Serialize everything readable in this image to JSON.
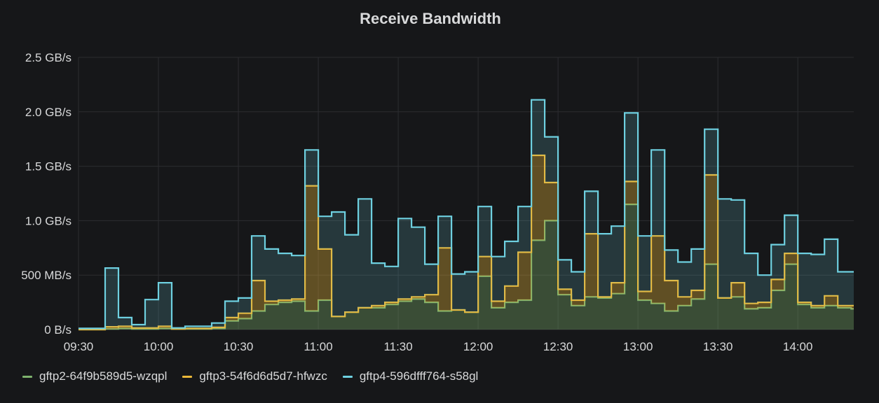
{
  "panel": {
    "title": "Receive Bandwidth"
  },
  "chart_data": {
    "type": "area",
    "title": "Receive Bandwidth",
    "xlabel": "",
    "ylabel": "",
    "unit": "MB/s",
    "stacked": true,
    "ylim": [
      0,
      2500
    ],
    "xlim": [
      "09:30",
      "14:21"
    ],
    "y_ticks": [
      {
        "value": 0,
        "label": "0 B/s"
      },
      {
        "value": 500,
        "label": "500 MB/s"
      },
      {
        "value": 1000,
        "label": "1.0 GB/s"
      },
      {
        "value": 1500,
        "label": "1.5 GB/s"
      },
      {
        "value": 2000,
        "label": "2.0 GB/s"
      },
      {
        "value": 2500,
        "label": "2.5 GB/s"
      }
    ],
    "x_ticks": [
      "09:30",
      "10:00",
      "10:30",
      "11:00",
      "11:30",
      "12:00",
      "12:30",
      "13:00",
      "13:30",
      "14:00"
    ],
    "grid": true,
    "legend": "bottom",
    "x": [
      "09:30",
      "09:40",
      "09:45",
      "09:50",
      "09:55",
      "10:00",
      "10:05",
      "10:10",
      "10:20",
      "10:25",
      "10:30",
      "10:35",
      "10:40",
      "10:45",
      "10:50",
      "10:55",
      "11:00",
      "11:05",
      "11:10",
      "11:15",
      "11:20",
      "11:25",
      "11:30",
      "11:35",
      "11:40",
      "11:45",
      "11:50",
      "11:55",
      "12:00",
      "12:05",
      "12:10",
      "12:15",
      "12:20",
      "12:25",
      "12:30",
      "12:35",
      "12:40",
      "12:45",
      "12:50",
      "12:55",
      "13:00",
      "13:05",
      "13:10",
      "13:15",
      "13:20",
      "13:25",
      "13:30",
      "13:35",
      "13:40",
      "13:45",
      "13:50",
      "13:55",
      "14:00",
      "14:05",
      "14:10",
      "14:15",
      "14:20"
    ],
    "series": [
      {
        "name": "gftp2-64f9b589d5-wzqpl",
        "color": "#7eb26d",
        "values": [
          0,
          5,
          10,
          5,
          5,
          10,
          5,
          5,
          10,
          80,
          100,
          170,
          230,
          250,
          260,
          170,
          270,
          120,
          160,
          200,
          200,
          230,
          260,
          280,
          250,
          170,
          180,
          160,
          490,
          200,
          250,
          270,
          820,
          1000,
          320,
          220,
          300,
          290,
          330,
          1150,
          270,
          240,
          170,
          220,
          280,
          600,
          290,
          300,
          190,
          200,
          360,
          600,
          230,
          200,
          220,
          200,
          190
        ]
      },
      {
        "name": "gftp3-54f6d6d5d7-hfwzc",
        "color": "#eab839",
        "values": [
          0,
          20,
          20,
          10,
          10,
          20,
          0,
          5,
          10,
          30,
          50,
          280,
          30,
          20,
          20,
          1150,
          470,
          0,
          0,
          0,
          20,
          20,
          20,
          20,
          70,
          580,
          0,
          0,
          180,
          60,
          150,
          440,
          780,
          350,
          50,
          50,
          580,
          10,
          100,
          210,
          80,
          620,
          280,
          80,
          80,
          820,
          0,
          130,
          50,
          50,
          100,
          100,
          20,
          20,
          90,
          20,
          30
        ]
      },
      {
        "name": "gftp4-596dfff764-s58gl",
        "color": "#6ed0e0",
        "values": [
          10,
          540,
          80,
          30,
          260,
          400,
          10,
          20,
          40,
          150,
          140,
          410,
          480,
          430,
          400,
          330,
          300,
          960,
          710,
          1000,
          390,
          330,
          740,
          640,
          280,
          290,
          330,
          370,
          460,
          410,
          410,
          420,
          510,
          420,
          270,
          260,
          390,
          580,
          520,
          630,
          510,
          790,
          280,
          320,
          380,
          420,
          910,
          760,
          460,
          250,
          320,
          350,
          450,
          470,
          520,
          310,
          310
        ]
      }
    ]
  }
}
